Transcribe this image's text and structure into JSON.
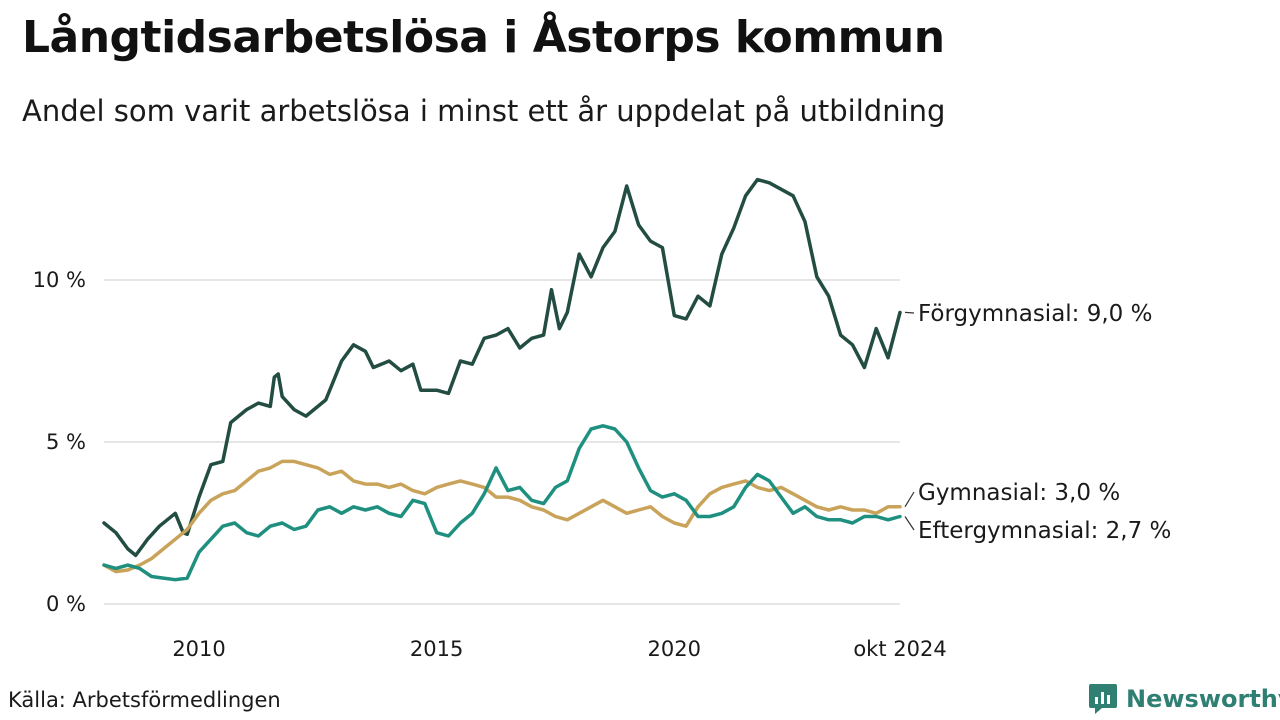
{
  "header": {
    "title": "Långtidsarbetslösa i Åstorps kommun",
    "subtitle": "Andel som varit arbetslösa i minst ett år uppdelat på utbildning"
  },
  "footer": {
    "source": "Källa: Arbetsförmedlingen",
    "brand": "Newsworthy",
    "brand_icon": "newsworthy-logo-icon"
  },
  "chart_data": {
    "type": "line",
    "x_range": [
      "2008-01",
      "2024-10"
    ],
    "ylim": [
      0,
      14
    ],
    "y_ticks": [
      {
        "value": 0,
        "label": "0 %"
      },
      {
        "value": 5,
        "label": "5 %"
      },
      {
        "value": 10,
        "label": "10 %"
      }
    ],
    "x_ticks": [
      {
        "date": "2010-01",
        "label": "2010"
      },
      {
        "date": "2015-01",
        "label": "2015"
      },
      {
        "date": "2020-01",
        "label": "2020"
      },
      {
        "date": "2024-10",
        "label": "okt 2024"
      }
    ],
    "grid": "horizontal",
    "series": [
      {
        "name": "Förgymnasial",
        "end_label": "Förgymnasial: 9,0 %",
        "color": "#234d42",
        "points": [
          [
            "2008-01",
            2.5
          ],
          [
            "2008-04",
            2.2
          ],
          [
            "2008-07",
            1.7
          ],
          [
            "2008-09",
            1.5
          ],
          [
            "2008-12",
            2.0
          ],
          [
            "2009-03",
            2.4
          ],
          [
            "2009-07",
            2.8
          ],
          [
            "2009-09",
            2.2
          ],
          [
            "2009-10",
            2.15
          ],
          [
            "2010-01",
            3.3
          ],
          [
            "2010-04",
            4.3
          ],
          [
            "2010-07",
            4.4
          ],
          [
            "2010-09",
            5.6
          ],
          [
            "2011-01",
            6.0
          ],
          [
            "2011-04",
            6.2
          ],
          [
            "2011-07",
            6.1
          ],
          [
            "2011-08",
            7.0
          ],
          [
            "2011-09",
            7.1
          ],
          [
            "2011-10",
            6.4
          ],
          [
            "2012-01",
            6.0
          ],
          [
            "2012-04",
            5.8
          ],
          [
            "2012-06",
            6.0
          ],
          [
            "2012-09",
            6.3
          ],
          [
            "2013-01",
            7.5
          ],
          [
            "2013-04",
            8.0
          ],
          [
            "2013-07",
            7.8
          ],
          [
            "2013-09",
            7.3
          ],
          [
            "2014-01",
            7.5
          ],
          [
            "2014-04",
            7.2
          ],
          [
            "2014-07",
            7.4
          ],
          [
            "2014-09",
            6.6
          ],
          [
            "2015-01",
            6.6
          ],
          [
            "2015-04",
            6.5
          ],
          [
            "2015-07",
            7.5
          ],
          [
            "2015-10",
            7.4
          ],
          [
            "2016-01",
            8.2
          ],
          [
            "2016-04",
            8.3
          ],
          [
            "2016-07",
            8.5
          ],
          [
            "2016-10",
            7.9
          ],
          [
            "2017-01",
            8.2
          ],
          [
            "2017-04",
            8.3
          ],
          [
            "2017-06",
            9.7
          ],
          [
            "2017-08",
            8.5
          ],
          [
            "2017-10",
            9.0
          ],
          [
            "2018-01",
            10.8
          ],
          [
            "2018-04",
            10.1
          ],
          [
            "2018-07",
            11.0
          ],
          [
            "2018-10",
            11.5
          ],
          [
            "2019-01",
            12.9
          ],
          [
            "2019-04",
            11.7
          ],
          [
            "2019-07",
            11.2
          ],
          [
            "2019-10",
            11.0
          ],
          [
            "2020-01",
            8.9
          ],
          [
            "2020-04",
            8.8
          ],
          [
            "2020-07",
            9.5
          ],
          [
            "2020-10",
            9.2
          ],
          [
            "2021-01",
            10.8
          ],
          [
            "2021-04",
            11.6
          ],
          [
            "2021-07",
            12.6
          ],
          [
            "2021-10",
            13.1
          ],
          [
            "2022-01",
            13.0
          ],
          [
            "2022-04",
            12.8
          ],
          [
            "2022-07",
            12.6
          ],
          [
            "2022-10",
            11.8
          ],
          [
            "2023-01",
            10.1
          ],
          [
            "2023-04",
            9.5
          ],
          [
            "2023-07",
            8.3
          ],
          [
            "2023-10",
            8.0
          ],
          [
            "2024-01",
            7.3
          ],
          [
            "2024-04",
            8.5
          ],
          [
            "2024-07",
            7.6
          ],
          [
            "2024-10",
            9.0
          ]
        ]
      },
      {
        "name": "Gymnasial",
        "end_label": "Gymnasial: 3,0 %",
        "color": "#c9a35a",
        "points": [
          [
            "2008-01",
            1.2
          ],
          [
            "2008-04",
            1.0
          ],
          [
            "2008-07",
            1.05
          ],
          [
            "2008-10",
            1.2
          ],
          [
            "2009-01",
            1.4
          ],
          [
            "2009-04",
            1.7
          ],
          [
            "2009-07",
            2.0
          ],
          [
            "2009-10",
            2.3
          ],
          [
            "2010-01",
            2.8
          ],
          [
            "2010-04",
            3.2
          ],
          [
            "2010-07",
            3.4
          ],
          [
            "2010-10",
            3.5
          ],
          [
            "2011-01",
            3.8
          ],
          [
            "2011-04",
            4.1
          ],
          [
            "2011-07",
            4.2
          ],
          [
            "2011-10",
            4.4
          ],
          [
            "2012-01",
            4.4
          ],
          [
            "2012-04",
            4.3
          ],
          [
            "2012-07",
            4.2
          ],
          [
            "2012-10",
            4.0
          ],
          [
            "2013-01",
            4.1
          ],
          [
            "2013-04",
            3.8
          ],
          [
            "2013-07",
            3.7
          ],
          [
            "2013-10",
            3.7
          ],
          [
            "2014-01",
            3.6
          ],
          [
            "2014-04",
            3.7
          ],
          [
            "2014-07",
            3.5
          ],
          [
            "2014-10",
            3.4
          ],
          [
            "2015-01",
            3.6
          ],
          [
            "2015-04",
            3.7
          ],
          [
            "2015-07",
            3.8
          ],
          [
            "2015-10",
            3.7
          ],
          [
            "2016-01",
            3.6
          ],
          [
            "2016-04",
            3.3
          ],
          [
            "2016-07",
            3.3
          ],
          [
            "2016-10",
            3.2
          ],
          [
            "2017-01",
            3.0
          ],
          [
            "2017-04",
            2.9
          ],
          [
            "2017-07",
            2.7
          ],
          [
            "2017-10",
            2.6
          ],
          [
            "2018-01",
            2.8
          ],
          [
            "2018-04",
            3.0
          ],
          [
            "2018-07",
            3.2
          ],
          [
            "2018-10",
            3.0
          ],
          [
            "2019-01",
            2.8
          ],
          [
            "2019-04",
            2.9
          ],
          [
            "2019-07",
            3.0
          ],
          [
            "2019-10",
            2.7
          ],
          [
            "2020-01",
            2.5
          ],
          [
            "2020-04",
            2.4
          ],
          [
            "2020-07",
            3.0
          ],
          [
            "2020-10",
            3.4
          ],
          [
            "2021-01",
            3.6
          ],
          [
            "2021-04",
            3.7
          ],
          [
            "2021-07",
            3.8
          ],
          [
            "2021-10",
            3.6
          ],
          [
            "2022-01",
            3.5
          ],
          [
            "2022-04",
            3.6
          ],
          [
            "2022-07",
            3.4
          ],
          [
            "2022-10",
            3.2
          ],
          [
            "2023-01",
            3.0
          ],
          [
            "2023-04",
            2.9
          ],
          [
            "2023-07",
            3.0
          ],
          [
            "2023-10",
            2.9
          ],
          [
            "2024-01",
            2.9
          ],
          [
            "2024-04",
            2.8
          ],
          [
            "2024-07",
            3.0
          ],
          [
            "2024-10",
            3.0
          ]
        ]
      },
      {
        "name": "Eftergymnasial",
        "end_label": "Eftergymnasial: 2,7 %",
        "color": "#1f9080",
        "points": [
          [
            "2008-01",
            1.2
          ],
          [
            "2008-04",
            1.1
          ],
          [
            "2008-07",
            1.2
          ],
          [
            "2008-10",
            1.1
          ],
          [
            "2009-01",
            0.85
          ],
          [
            "2009-04",
            0.8
          ],
          [
            "2009-07",
            0.75
          ],
          [
            "2009-10",
            0.8
          ],
          [
            "2010-01",
            1.6
          ],
          [
            "2010-04",
            2.0
          ],
          [
            "2010-07",
            2.4
          ],
          [
            "2010-10",
            2.5
          ],
          [
            "2011-01",
            2.2
          ],
          [
            "2011-04",
            2.1
          ],
          [
            "2011-07",
            2.4
          ],
          [
            "2011-10",
            2.5
          ],
          [
            "2012-01",
            2.3
          ],
          [
            "2012-04",
            2.4
          ],
          [
            "2012-07",
            2.9
          ],
          [
            "2012-10",
            3.0
          ],
          [
            "2013-01",
            2.8
          ],
          [
            "2013-04",
            3.0
          ],
          [
            "2013-07",
            2.9
          ],
          [
            "2013-10",
            3.0
          ],
          [
            "2014-01",
            2.8
          ],
          [
            "2014-04",
            2.7
          ],
          [
            "2014-07",
            3.2
          ],
          [
            "2014-10",
            3.1
          ],
          [
            "2015-01",
            2.2
          ],
          [
            "2015-04",
            2.1
          ],
          [
            "2015-07",
            2.5
          ],
          [
            "2015-10",
            2.8
          ],
          [
            "2016-01",
            3.4
          ],
          [
            "2016-04",
            4.2
          ],
          [
            "2016-07",
            3.5
          ],
          [
            "2016-10",
            3.6
          ],
          [
            "2017-01",
            3.2
          ],
          [
            "2017-04",
            3.1
          ],
          [
            "2017-07",
            3.6
          ],
          [
            "2017-10",
            3.8
          ],
          [
            "2018-01",
            4.8
          ],
          [
            "2018-04",
            5.4
          ],
          [
            "2018-07",
            5.5
          ],
          [
            "2018-10",
            5.4
          ],
          [
            "2019-01",
            5.0
          ],
          [
            "2019-04",
            4.2
          ],
          [
            "2019-07",
            3.5
          ],
          [
            "2019-10",
            3.3
          ],
          [
            "2020-01",
            3.4
          ],
          [
            "2020-04",
            3.2
          ],
          [
            "2020-07",
            2.7
          ],
          [
            "2020-10",
            2.7
          ],
          [
            "2021-01",
            2.8
          ],
          [
            "2021-04",
            3.0
          ],
          [
            "2021-07",
            3.6
          ],
          [
            "2021-10",
            4.0
          ],
          [
            "2022-01",
            3.8
          ],
          [
            "2022-04",
            3.3
          ],
          [
            "2022-07",
            2.8
          ],
          [
            "2022-10",
            3.0
          ],
          [
            "2023-01",
            2.7
          ],
          [
            "2023-04",
            2.6
          ],
          [
            "2023-07",
            2.6
          ],
          [
            "2023-10",
            2.5
          ],
          [
            "2024-01",
            2.7
          ],
          [
            "2024-04",
            2.7
          ],
          [
            "2024-07",
            2.6
          ],
          [
            "2024-10",
            2.7
          ]
        ]
      }
    ]
  }
}
